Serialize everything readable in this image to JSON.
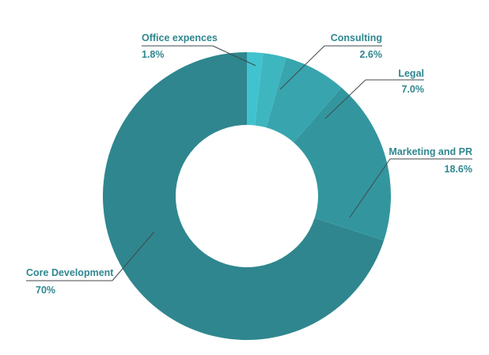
{
  "chart_data": {
    "type": "pie",
    "donut": true,
    "legend": "none",
    "slices": [
      {
        "label": "Office expences",
        "value": 1.8,
        "display": "1.8%",
        "color": "#41c3cf"
      },
      {
        "label": "Consulting",
        "value": 2.6,
        "display": "2.6%",
        "color": "#3db6c0"
      },
      {
        "label": "Legal",
        "value": 7.0,
        "display": "7.0%",
        "color": "#38a5ae"
      },
      {
        "label": "Marketing and PR",
        "value": 18.6,
        "display": "18.6%",
        "color": "#33969e"
      },
      {
        "label": "Core Development",
        "value": 70,
        "display": "70%",
        "color": "#2f868e"
      }
    ]
  },
  "colors": {
    "label_text": "#2f878f",
    "leader_line": "#404a4d",
    "background": "#ffffff"
  }
}
